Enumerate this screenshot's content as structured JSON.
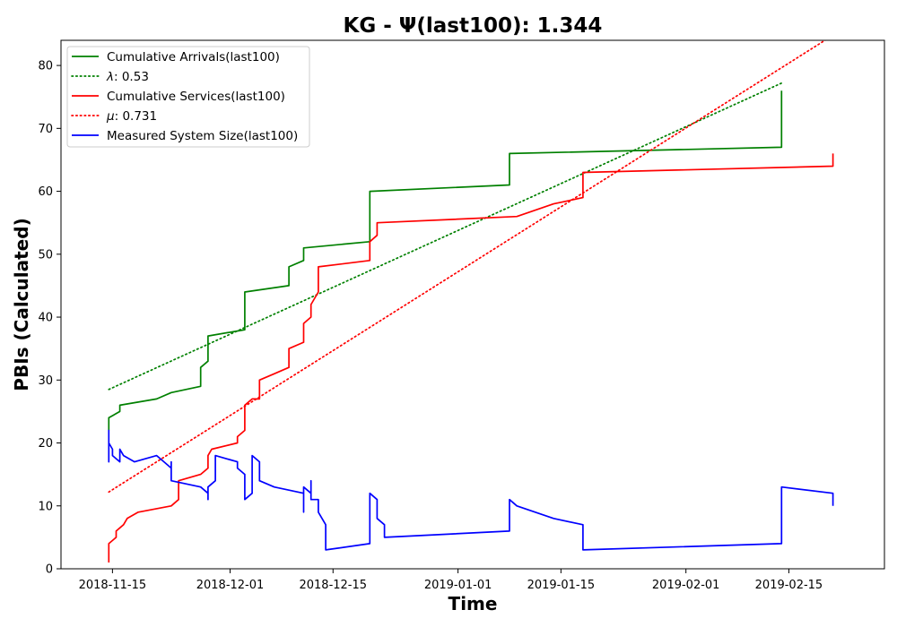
{
  "chart_data": {
    "type": "line",
    "title": "KG -  Ψ(last100): 1.344",
    "xlabel": "Time",
    "ylabel": "PBIs (Calculated)",
    "x_ticks": [
      "2018-11-15",
      "2018-12-01",
      "2018-12-15",
      "2019-01-01",
      "2019-01-15",
      "2019-02-01",
      "2019-02-15"
    ],
    "xlim": [
      "2018-11-08",
      "2019-02-28"
    ],
    "y_ticks": [
      "0",
      "10",
      "20",
      "30",
      "40",
      "50",
      "60",
      "70",
      "80"
    ],
    "ylim": [
      0,
      84
    ],
    "grid": false,
    "legend_position": "top-left",
    "series": [
      {
        "name": "Cumulative Arrivals(last100)",
        "label_prefix": "",
        "color": "#008000",
        "style": "solid",
        "points": [
          [
            "2018-11-14T12:00",
            22
          ],
          [
            "2018-11-14T12:00",
            24
          ],
          [
            "2018-11-16",
            25
          ],
          [
            "2018-11-16",
            26
          ],
          [
            "2018-11-21",
            27
          ],
          [
            "2018-11-23",
            28
          ],
          [
            "2018-11-27",
            29
          ],
          [
            "2018-11-27",
            32
          ],
          [
            "2018-11-28",
            33
          ],
          [
            "2018-11-28",
            37
          ],
          [
            "2018-12-03",
            38
          ],
          [
            "2018-12-03",
            44
          ],
          [
            "2018-12-09",
            45
          ],
          [
            "2018-12-09",
            48
          ],
          [
            "2018-12-11",
            49
          ],
          [
            "2018-12-11",
            51
          ],
          [
            "2018-12-20",
            52
          ],
          [
            "2018-12-20",
            60
          ],
          [
            "2019-01-08",
            61
          ],
          [
            "2019-01-08",
            66
          ],
          [
            "2019-02-14",
            67
          ],
          [
            "2019-02-14",
            76
          ]
        ]
      },
      {
        "name": "0.53",
        "label_prefix": "λ: ",
        "color": "#008000",
        "style": "dotted",
        "points": [
          [
            "2018-11-14T12:00",
            28.5
          ],
          [
            "2019-02-14",
            77.2
          ]
        ]
      },
      {
        "name": "Cumulative Services(last100)",
        "label_prefix": "",
        "color": "#ff0000",
        "style": "solid",
        "points": [
          [
            "2018-11-14T12:00",
            1
          ],
          [
            "2018-11-14T12:00",
            4
          ],
          [
            "2018-11-15T12:00",
            5
          ],
          [
            "2018-11-15T12:00",
            6
          ],
          [
            "2018-11-16T12:00",
            7
          ],
          [
            "2018-11-17",
            8
          ],
          [
            "2018-11-18T12:00",
            9
          ],
          [
            "2018-11-23",
            10
          ],
          [
            "2018-11-24",
            11
          ],
          [
            "2018-11-24",
            14
          ],
          [
            "2018-11-27",
            15
          ],
          [
            "2018-11-28",
            16
          ],
          [
            "2018-11-28",
            18
          ],
          [
            "2018-11-28T12:00",
            19
          ],
          [
            "2018-12-02",
            20
          ],
          [
            "2018-12-02",
            21
          ],
          [
            "2018-12-03",
            22
          ],
          [
            "2018-12-03",
            26
          ],
          [
            "2018-12-04",
            27
          ],
          [
            "2018-12-05",
            27
          ],
          [
            "2018-12-05",
            30
          ],
          [
            "2018-12-07",
            31
          ],
          [
            "2018-12-09",
            32
          ],
          [
            "2018-12-09",
            35
          ],
          [
            "2018-12-11",
            36
          ],
          [
            "2018-12-11",
            39
          ],
          [
            "2018-12-12",
            40
          ],
          [
            "2018-12-12",
            42
          ],
          [
            "2018-12-13",
            44
          ],
          [
            "2018-12-13",
            48
          ],
          [
            "2018-12-20",
            49
          ],
          [
            "2018-12-20",
            52
          ],
          [
            "2018-12-21",
            53
          ],
          [
            "2018-12-21",
            55
          ],
          [
            "2019-01-09",
            56
          ],
          [
            "2019-01-14",
            58
          ],
          [
            "2019-01-18",
            59
          ],
          [
            "2019-01-18",
            63
          ],
          [
            "2019-02-21",
            64
          ],
          [
            "2019-02-21",
            66
          ]
        ]
      },
      {
        "name": "0.731",
        "label_prefix": "μ: ",
        "color": "#ff0000",
        "style": "dotted",
        "points": [
          [
            "2018-11-14T12:00",
            12.2
          ],
          [
            "2019-02-21",
            84.8
          ]
        ]
      },
      {
        "name": "Measured System Size(last100)",
        "label_prefix": "",
        "color": "#0000ff",
        "style": "solid",
        "points": [
          [
            "2018-11-14T12:00",
            21
          ],
          [
            "2018-11-14T12:00",
            17
          ],
          [
            "2018-11-14T12:00",
            22
          ],
          [
            "2018-11-14T12:00",
            20
          ],
          [
            "2018-11-15",
            19
          ],
          [
            "2018-11-15",
            18
          ],
          [
            "2018-11-16",
            17
          ],
          [
            "2018-11-16",
            19
          ],
          [
            "2018-11-16T12:00",
            18
          ],
          [
            "2018-11-18",
            17
          ],
          [
            "2018-11-21",
            18
          ],
          [
            "2018-11-22",
            17
          ],
          [
            "2018-11-23",
            16
          ],
          [
            "2018-11-23",
            17
          ],
          [
            "2018-11-23",
            14
          ],
          [
            "2018-11-27",
            13
          ],
          [
            "2018-11-28",
            12
          ],
          [
            "2018-11-28",
            11
          ],
          [
            "2018-11-28",
            13
          ],
          [
            "2018-11-29",
            14
          ],
          [
            "2018-11-29",
            18
          ],
          [
            "2018-12-02",
            17
          ],
          [
            "2018-12-02",
            16
          ],
          [
            "2018-12-03",
            15
          ],
          [
            "2018-12-03",
            11
          ],
          [
            "2018-12-04",
            12
          ],
          [
            "2018-12-04",
            18
          ],
          [
            "2018-12-05",
            17
          ],
          [
            "2018-12-05",
            14
          ],
          [
            "2018-12-07",
            13
          ],
          [
            "2018-12-11",
            12
          ],
          [
            "2018-12-11",
            9
          ],
          [
            "2018-12-11",
            13
          ],
          [
            "2018-12-12",
            12
          ],
          [
            "2018-12-12",
            11
          ],
          [
            "2018-12-12",
            14
          ],
          [
            "2018-12-12",
            11
          ],
          [
            "2018-12-13",
            11
          ],
          [
            "2018-12-13",
            9
          ],
          [
            "2018-12-14",
            7
          ],
          [
            "2018-12-14",
            3
          ],
          [
            "2018-12-20",
            4
          ],
          [
            "2018-12-20",
            12
          ],
          [
            "2018-12-21",
            11
          ],
          [
            "2018-12-21",
            8
          ],
          [
            "2018-12-22",
            7
          ],
          [
            "2018-12-22",
            5
          ],
          [
            "2019-01-08",
            6
          ],
          [
            "2019-01-08",
            11
          ],
          [
            "2019-01-09",
            10
          ],
          [
            "2019-01-14",
            8
          ],
          [
            "2019-01-18",
            7
          ],
          [
            "2019-01-18",
            3
          ],
          [
            "2019-02-14",
            4
          ],
          [
            "2019-02-14",
            13
          ],
          [
            "2019-02-21",
            12
          ],
          [
            "2019-02-21",
            10
          ]
        ]
      }
    ]
  }
}
